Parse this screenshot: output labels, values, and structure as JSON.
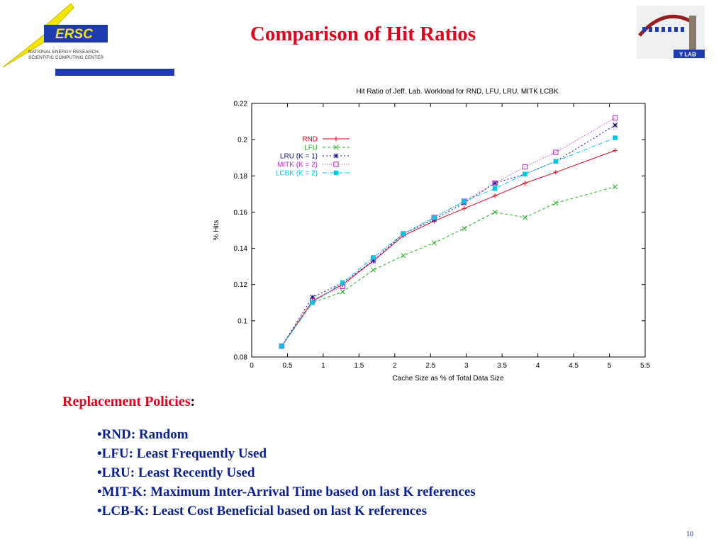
{
  "header": {
    "logo_text": "ERSC",
    "logo_caption_line1": "NATIONAL ENERGY RESEARCH",
    "logo_caption_line2": "SCIENTIFIC COMPUTING CENTER",
    "lab_logo_text": "Y LAB",
    "title": "Comparison of Hit Ratios"
  },
  "colors": {
    "title": "#e0001b",
    "list_text": "#0b1f8f",
    "logo_bar": "#1f3bb0",
    "bolt": "#f2e600"
  },
  "chart_data": {
    "type": "line",
    "title": "Hit Ratio of Jeff. Lab. Workload for  RND, LFU, LRU, MITK  LCBK",
    "xlabel": "Cache Size as % of Total Data Size",
    "ylabel": "% Hits",
    "xlim": [
      0,
      5.5
    ],
    "ylim": [
      0.08,
      0.22
    ],
    "xticks": [
      "0",
      "0.5",
      "1",
      "1.5",
      "2",
      "2.5",
      "3",
      "3.5",
      "4",
      "4.5",
      "5",
      "5.5"
    ],
    "yticks": [
      "0.08",
      "0.1",
      "0.12",
      "0.14",
      "0.16",
      "0.18",
      "0.2",
      "0.22"
    ],
    "grid": false,
    "legend_position": "top-left",
    "x": [
      0.42,
      0.85,
      1.27,
      1.7,
      2.12,
      2.55,
      2.97,
      3.4,
      3.82,
      4.25,
      5.08
    ],
    "series": [
      {
        "name": "RND",
        "color": "#e0001b",
        "marker": "+",
        "dash": "",
        "values": [
          0.086,
          0.111,
          0.12,
          0.133,
          0.147,
          0.155,
          0.162,
          0.169,
          0.176,
          0.182,
          0.194
        ]
      },
      {
        "name": "LFU",
        "color": "#22b022",
        "marker": "x",
        "dash": "4,3",
        "values": [
          0.086,
          0.11,
          0.116,
          0.128,
          0.136,
          0.143,
          0.151,
          0.16,
          0.157,
          0.165,
          0.174
        ]
      },
      {
        "name": "LRU (K = 1)",
        "color": "#10107a",
        "marker": "*",
        "dash": "2,3",
        "values": [
          0.086,
          0.113,
          0.121,
          0.133,
          0.148,
          0.156,
          0.165,
          0.176,
          0.181,
          0.188,
          0.208
        ]
      },
      {
        "name": "MITK (K = 2)",
        "color": "#c020c0",
        "marker": "square-open",
        "dash": "1,2",
        "values": [
          0.086,
          0.111,
          0.119,
          0.134,
          0.148,
          0.157,
          0.166,
          0.176,
          0.185,
          0.193,
          0.212
        ]
      },
      {
        "name": "LCBK (K = 2)",
        "color": "#00c8e0",
        "marker": "square-filled",
        "dash": "6,2,1,2",
        "values": [
          0.086,
          0.11,
          0.121,
          0.135,
          0.148,
          0.157,
          0.166,
          0.173,
          0.181,
          0.188,
          0.201
        ]
      }
    ]
  },
  "policies": {
    "heading": "Replacement Policies",
    "colon": ":",
    "bullet": "•",
    "items": [
      "RND: Random",
      "LFU: Least Frequently Used",
      "LRU: Least Recently Used",
      "MIT-K: Maximum Inter-Arrival Time based on last K references",
      "LCB-K: Least Cost Beneficial based on last K references"
    ]
  },
  "footer": {
    "page_number": "10"
  }
}
